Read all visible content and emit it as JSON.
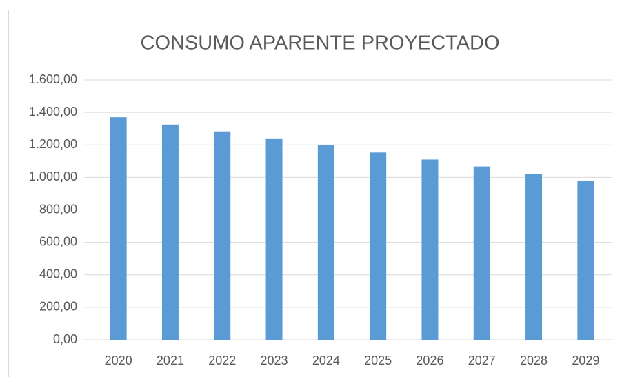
{
  "chart_data": {
    "type": "bar",
    "title": "CONSUMO APARENTE PROYECTADO",
    "categories": [
      "2020",
      "2021",
      "2022",
      "2023",
      "2024",
      "2025",
      "2026",
      "2027",
      "2028",
      "2029"
    ],
    "values": [
      1370,
      1325,
      1283,
      1240,
      1197,
      1153,
      1110,
      1067,
      1023,
      980
    ],
    "color": "#5b9bd5",
    "ylim": [
      0,
      1600
    ],
    "yticks": [
      {
        "value": 0,
        "label": "0,00"
      },
      {
        "value": 200,
        "label": "200,00"
      },
      {
        "value": 400,
        "label": "400,00"
      },
      {
        "value": 600,
        "label": "600,00"
      },
      {
        "value": 800,
        "label": "800,00"
      },
      {
        "value": 1000,
        "label": "1.000,00"
      },
      {
        "value": 1200,
        "label": "1.200,00"
      },
      {
        "value": 1400,
        "label": "1.400,00"
      },
      {
        "value": 1600,
        "label": "1.600,00"
      }
    ],
    "grid": true
  }
}
